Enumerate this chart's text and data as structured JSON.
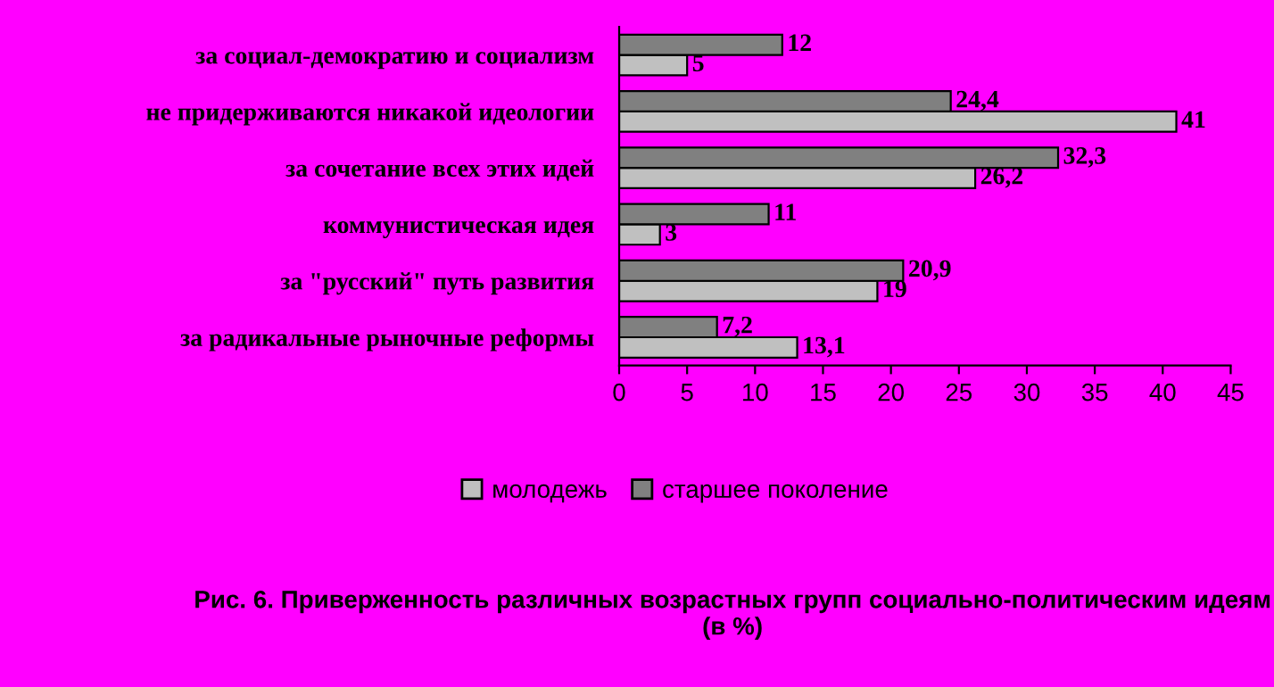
{
  "chart_data": {
    "type": "bar",
    "orientation": "horizontal",
    "title": "Рис. 6. Приверженность различных возрастных групп социально-политическим идеям (в %)",
    "categories": [
      "за социал-демократию и социализм",
      "не придерживаются никакой идеологии",
      "за сочетание всех этих идей",
      "коммунистическая идея",
      "за \"русский\" путь развития",
      "за радикальные рыночные реформы"
    ],
    "series": [
      {
        "name": "молодежь",
        "color": "#c0c0c0",
        "values": [
          5,
          41,
          26.2,
          3,
          19,
          13.1
        ],
        "value_labels": [
          "5",
          "41",
          "26,2",
          "3",
          "19",
          "13,1"
        ]
      },
      {
        "name": "старшее поколение",
        "color": "#808080",
        "values": [
          12,
          24.4,
          32.3,
          11,
          20.9,
          7.2
        ],
        "value_labels": [
          "12",
          "24,4",
          "32,3",
          "11",
          "20,9",
          "7,2"
        ]
      }
    ],
    "xlim": [
      0,
      45
    ],
    "xticks": [
      0,
      5,
      10,
      15,
      20,
      25,
      30,
      35,
      40,
      45
    ],
    "grid": false,
    "legend": "bottom"
  }
}
